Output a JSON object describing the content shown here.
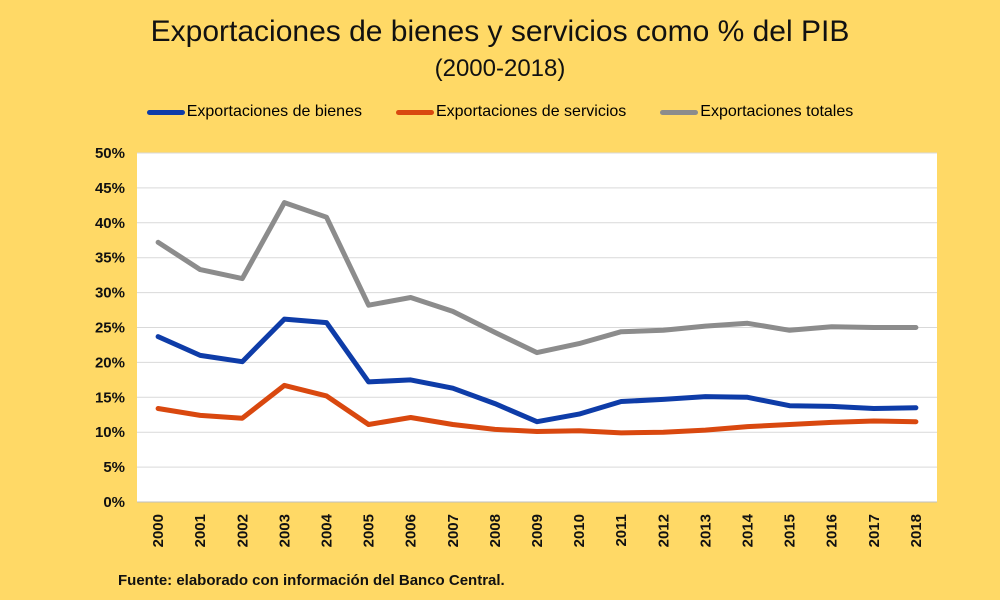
{
  "chart_data": {
    "type": "line",
    "title": "Exportaciones de bienes y servicios como % del PIB",
    "subtitle": "(2000-2018)",
    "xlabel": "",
    "ylabel": "",
    "x": [
      "2000",
      "2001",
      "2002",
      "2003",
      "2004",
      "2005",
      "2006",
      "2007",
      "2008",
      "2009",
      "2010",
      "2011",
      "2012",
      "2013",
      "2014",
      "2015",
      "2016",
      "2017",
      "2018"
    ],
    "ylim": [
      0,
      50
    ],
    "yticks": [
      "0%",
      "5%",
      "10%",
      "15%",
      "20%",
      "25%",
      "30%",
      "35%",
      "40%",
      "45%",
      "50%"
    ],
    "grid": true,
    "legend_position": "top",
    "series": [
      {
        "name": "Exportaciones de bienes",
        "color": "#0E3CA8",
        "values": [
          23.7,
          21.0,
          20.1,
          26.2,
          25.7,
          17.2,
          17.5,
          16.3,
          14.1,
          11.5,
          12.6,
          14.4,
          14.7,
          15.1,
          15.0,
          13.8,
          13.7,
          13.4,
          13.5
        ]
      },
      {
        "name": "Exportaciones de servicios",
        "color": "#D9480F",
        "values": [
          13.4,
          12.4,
          12.0,
          16.7,
          15.2,
          11.1,
          12.1,
          11.1,
          10.4,
          10.1,
          10.2,
          9.9,
          10.0,
          10.3,
          10.8,
          11.1,
          11.4,
          11.6,
          11.5
        ]
      },
      {
        "name": "Exportaciones totales",
        "color": "#8C8C8C",
        "values": [
          37.2,
          33.3,
          32.0,
          42.9,
          40.8,
          28.2,
          29.3,
          27.3,
          24.3,
          21.4,
          22.7,
          24.4,
          24.6,
          25.2,
          25.6,
          24.6,
          25.1,
          25.0,
          25.0
        ]
      }
    ],
    "source": "Fuente:  elaborado con información del Banco Central."
  }
}
